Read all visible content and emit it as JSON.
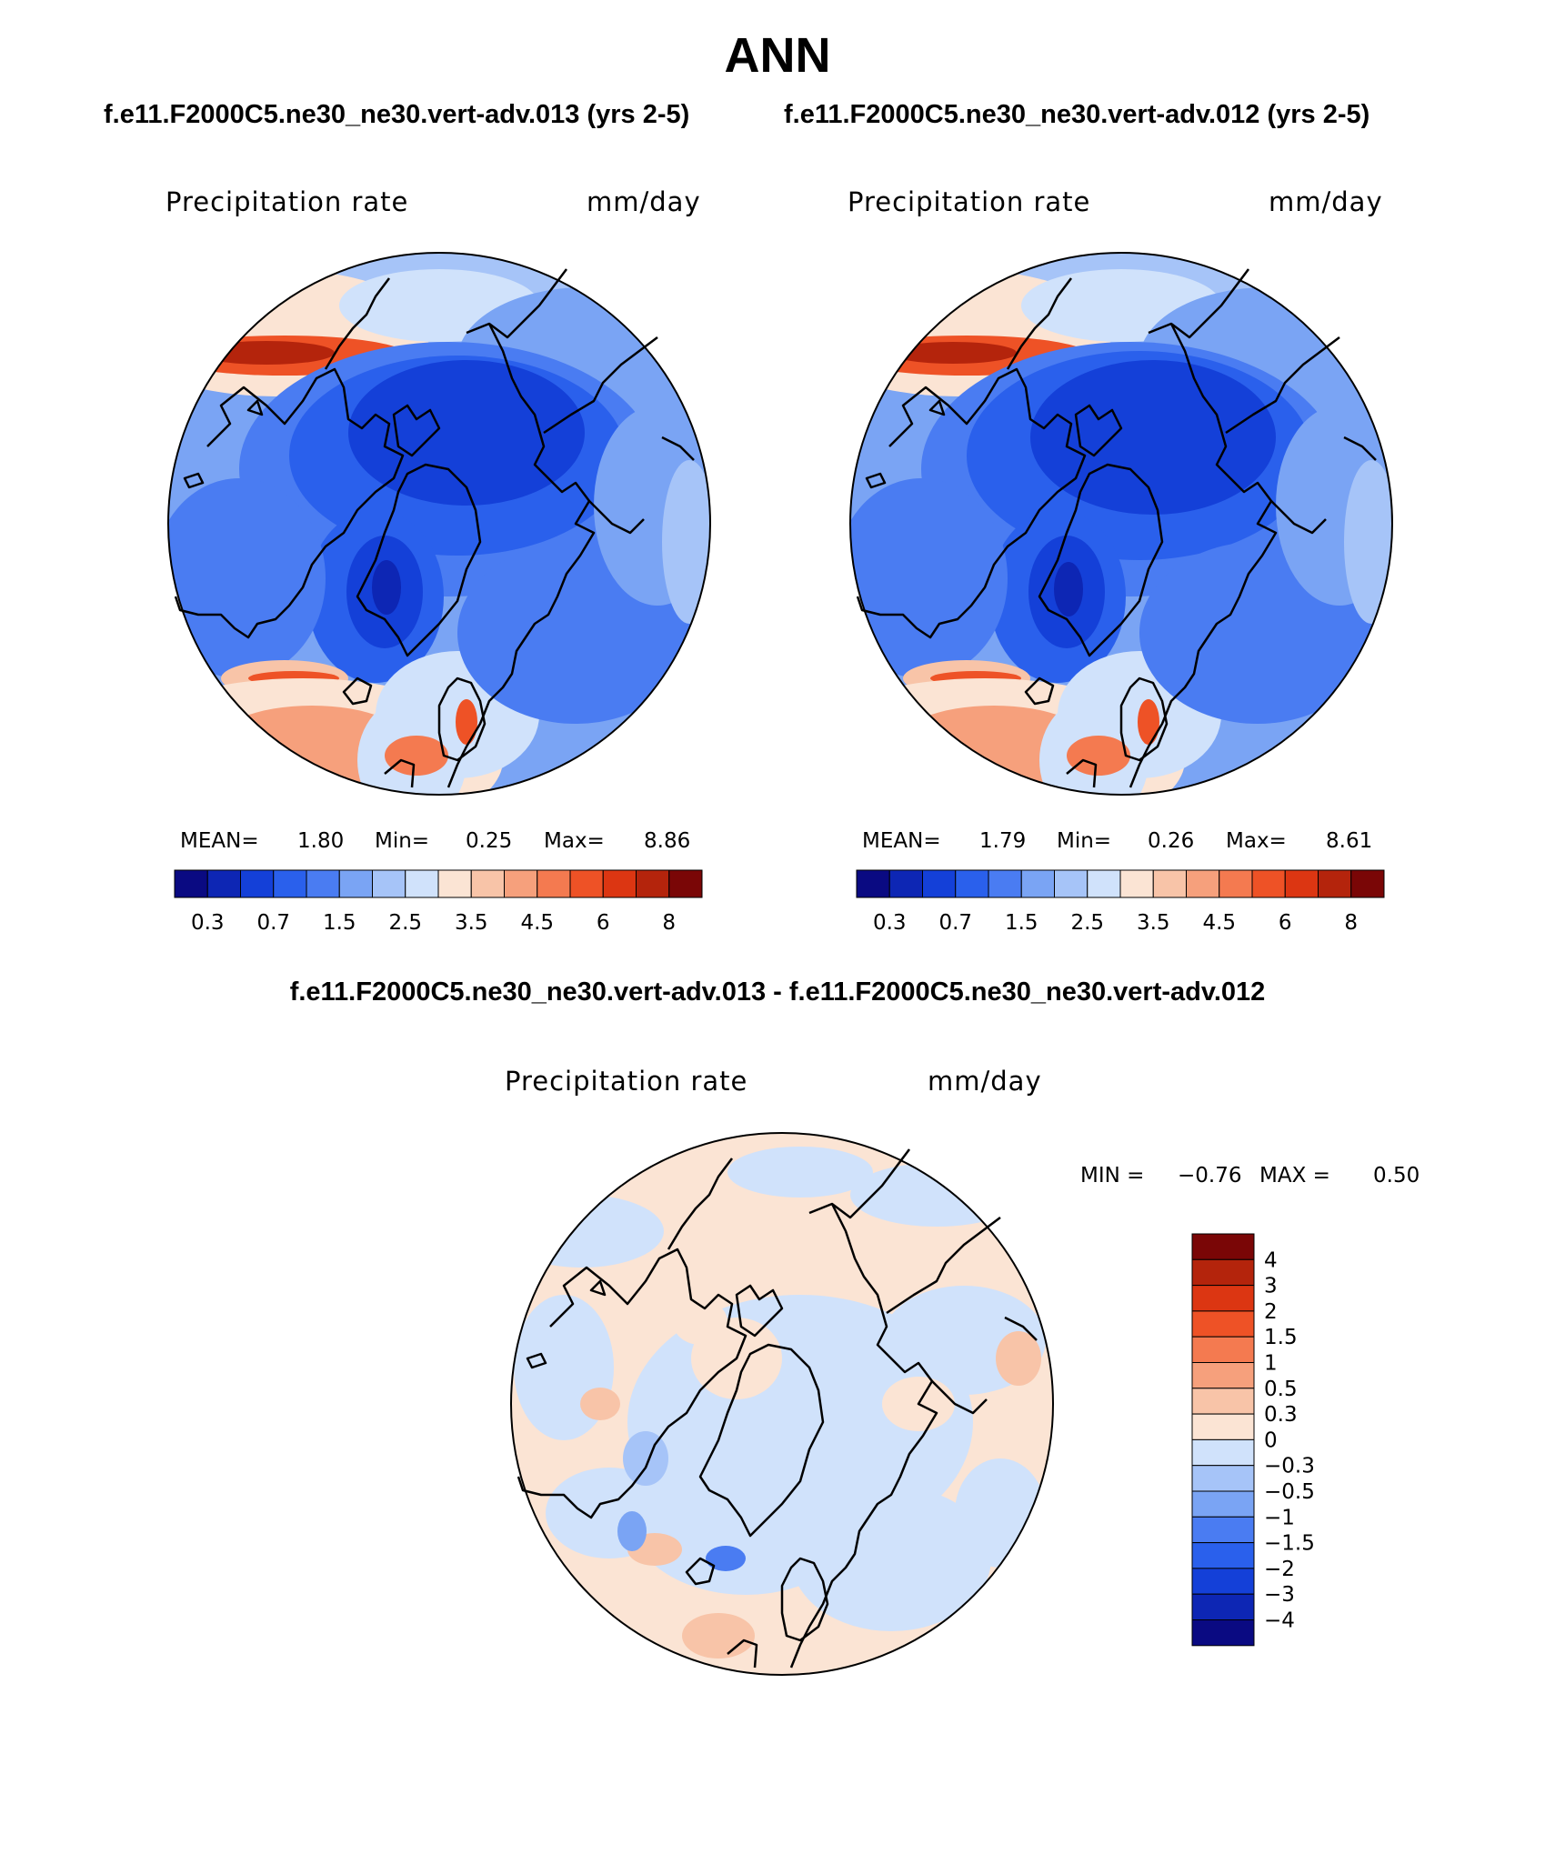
{
  "header": {
    "title": "ANN",
    "case_a": "f.e11.F2000C5.ne30_ne30.vert-adv.013 (yrs 2-5)",
    "case_b": "f.e11.F2000C5.ne30_ne30.vert-adv.012 (yrs 2-5)",
    "diff_title": "f.e11.F2000C5.ne30_ne30.vert-adv.013 - f.e11.F2000C5.ne30_ne30.vert-adv.012"
  },
  "panels": [
    {
      "variable": "Precipitation rate",
      "units": "mm/day",
      "stats": {
        "mean_label": "MEAN=",
        "mean": "1.80",
        "min_label": "Min=",
        "min": "0.25",
        "max_label": "Max=",
        "max": "8.86"
      }
    },
    {
      "variable": "Precipitation rate",
      "units": "mm/day",
      "stats": {
        "mean_label": "MEAN=",
        "mean": "1.79",
        "min_label": "Min=",
        "min": "0.26",
        "max_label": "Max=",
        "max": "8.61"
      }
    }
  ],
  "diff_panel": {
    "variable": "Precipitation rate",
    "units": "mm/day",
    "stats": {
      "min_label": "MIN =",
      "min": "−0.76",
      "max_label": "MAX =",
      "max": "0.50"
    }
  },
  "colorbar_main": {
    "colors": [
      "#0a0a82",
      "#0d26b4",
      "#1440d8",
      "#2a60ec",
      "#4a7cf2",
      "#7aa4f4",
      "#a6c4f8",
      "#d0e2fb",
      "#fbe4d4",
      "#f8c4a8",
      "#f6a07c",
      "#f47a50",
      "#ee5226",
      "#dc3612",
      "#b4240c",
      "#7a0606"
    ],
    "tick_labels": [
      "0.3",
      "0.7",
      "1.5",
      "2.5",
      "3.5",
      "4.5",
      "6",
      "8"
    ]
  },
  "colorbar_diff": {
    "colors": [
      "#7a0606",
      "#b4240c",
      "#dc3612",
      "#ee5226",
      "#f47a50",
      "#f6a07c",
      "#f8c4a8",
      "#fbe4d4",
      "#d0e2fb",
      "#a6c4f8",
      "#7aa4f4",
      "#4a7cf2",
      "#2a60ec",
      "#1440d8",
      "#0d26b4",
      "#0a0a82"
    ],
    "tick_labels": [
      "4",
      "3",
      "2",
      "1.5",
      "1",
      "0.5",
      "0.3",
      "0",
      "−0.3",
      "−0.5",
      "−1",
      "−1.5",
      "−2",
      "−3",
      "−4"
    ]
  }
}
